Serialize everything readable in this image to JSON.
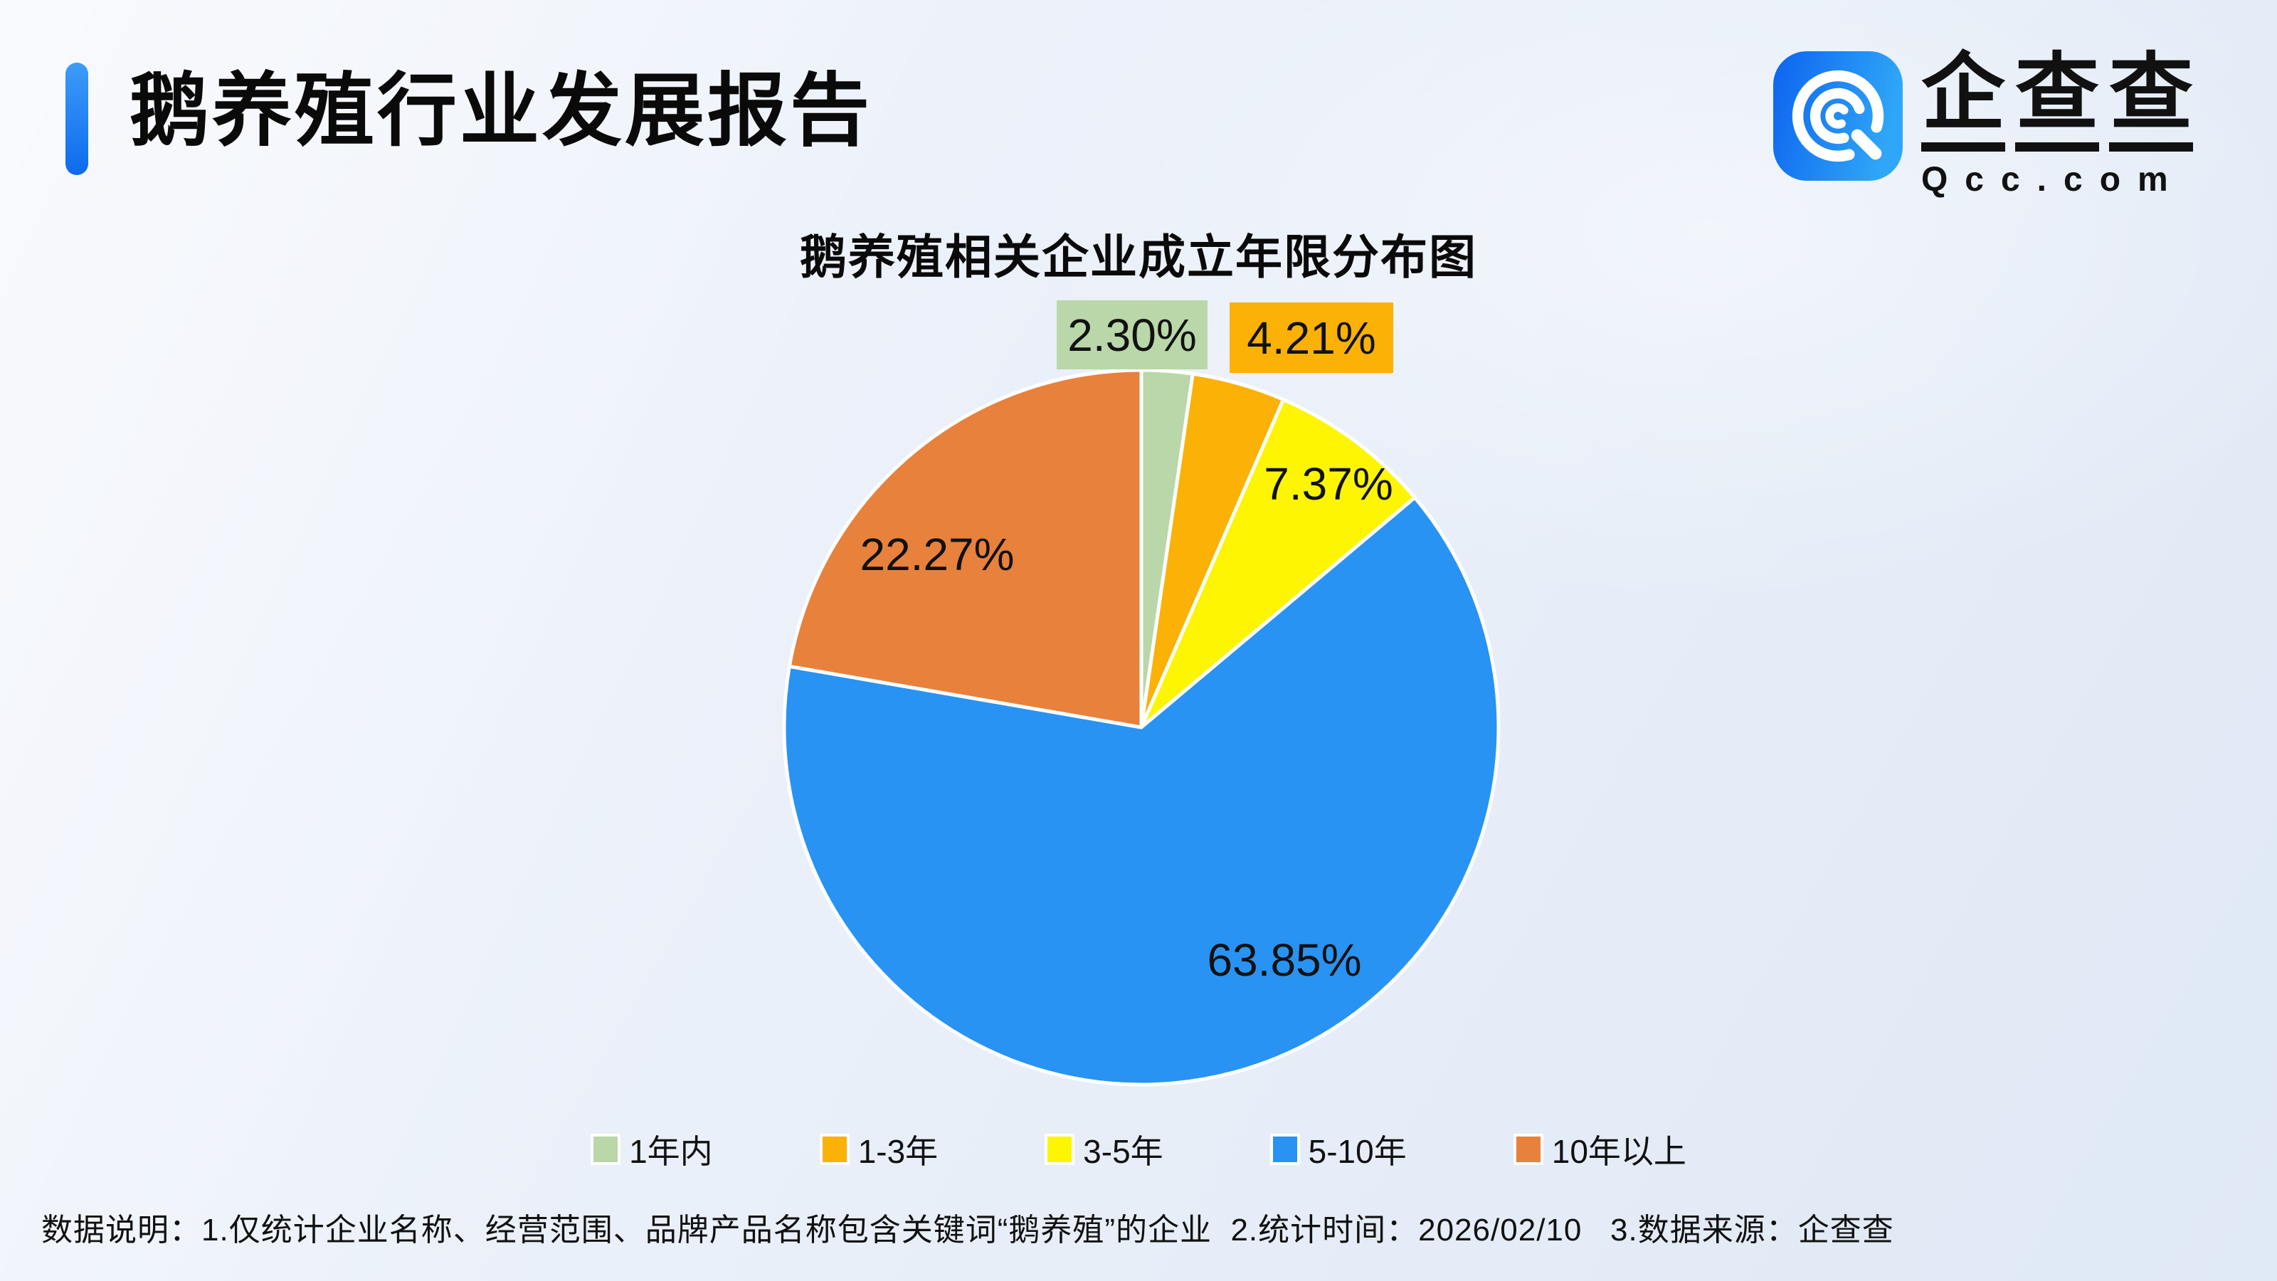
{
  "header": {
    "title": "鹅养殖行业发展报告"
  },
  "logo": {
    "name_cn_chars": [
      "企",
      "查",
      "查"
    ],
    "domain": "Qcc.com",
    "icon_colors": {
      "from": "#0d63ef",
      "to": "#2fa7f8"
    }
  },
  "chart_data": {
    "type": "pie",
    "title": "鹅养殖相关企业成立年限分布图",
    "unit": "percent",
    "start_angle_deg": 0,
    "direction": "clockwise",
    "legend_position": "bottom",
    "series": [
      {
        "name": "1年内",
        "value": 2.3,
        "label": "2.30%",
        "color": "#b9d7a8",
        "label_style": "boxed-outside"
      },
      {
        "name": "1-3年",
        "value": 4.21,
        "label": "4.21%",
        "color": "#fbb105",
        "label_style": "boxed-outside"
      },
      {
        "name": "3-5年",
        "value": 7.37,
        "label": "7.37%",
        "color": "#fdf501",
        "label_style": "inside"
      },
      {
        "name": "5-10年",
        "value": 63.85,
        "label": "63.85%",
        "color": "#2893f3",
        "label_style": "inside"
      },
      {
        "name": "10年以上",
        "value": 22.27,
        "label": "22.27%",
        "color": "#e8813c",
        "label_style": "inside"
      }
    ],
    "slice_border_color": "#ffffff"
  },
  "footer": {
    "note": "数据说明：1.仅统计企业名称、经营范围、品牌产品名称包含关键词“鹅养殖”的企业  2.统计时间：2026/02/10   3.数据来源：企查查"
  }
}
